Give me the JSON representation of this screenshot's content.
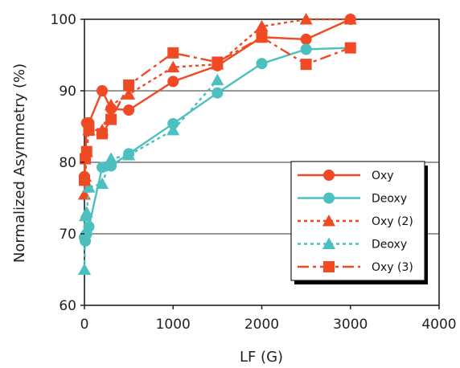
{
  "chart_data": {
    "type": "line",
    "title": "",
    "xlabel": "LF (G)",
    "ylabel": "Normalized Asymmetry (%)",
    "xlim": [
      0,
      4000
    ],
    "ylim": [
      60,
      100
    ],
    "xticks": [
      "0",
      "1000",
      "2000",
      "3000",
      "4000"
    ],
    "yticks": [
      "60",
      "70",
      "80",
      "90",
      "100"
    ],
    "grid": "horizontal",
    "legend_position": "right",
    "colors": {
      "red": "#ef4a23",
      "teal": "#4cbfbf"
    },
    "series": [
      {
        "name": "Oxy",
        "color": "#ef4a23",
        "marker": "circle",
        "dash": "solid",
        "x": [
          0,
          10,
          25,
          50,
          200,
          300,
          500,
          1000,
          1500,
          2000,
          2500,
          3000
        ],
        "y": [
          78,
          80.5,
          85.5,
          85.5,
          90,
          87.5,
          87.3,
          91.3,
          93.5,
          97.5,
          97.2,
          100
        ]
      },
      {
        "name": "Deoxy",
        "color": "#4cbfbf",
        "marker": "circle",
        "dash": "solid",
        "x": [
          0,
          10,
          25,
          50,
          200,
          300,
          500,
          1000,
          1500,
          2000,
          2500,
          3000
        ],
        "y": [
          69.5,
          69,
          70,
          71,
          79.3,
          79.5,
          81.2,
          85.4,
          89.7,
          93.8,
          95.8,
          96
        ]
      },
      {
        "name": "Oxy (2)",
        "color": "#ef4a23",
        "marker": "triangle",
        "dash": "dotted",
        "x": [
          0,
          10,
          25,
          50,
          200,
          300,
          500,
          1000,
          1500,
          2000,
          2500,
          3000
        ],
        "y": [
          75.5,
          78,
          81.5,
          84.5,
          84.5,
          88,
          89.5,
          93.3,
          93.7,
          99,
          100,
          100
        ]
      },
      {
        "name": "Deoxy",
        "color": "#4cbfbf",
        "marker": "triangle",
        "dash": "dotted",
        "x": [
          0,
          10,
          25,
          50,
          200,
          300,
          500,
          1000,
          1500
        ],
        "y": [
          65,
          72.5,
          73,
          76.5,
          77,
          80.5,
          81,
          84.5,
          91.5
        ]
      },
      {
        "name": "Oxy (3)",
        "color": "#ef4a23",
        "marker": "square",
        "dash": "dashed",
        "x": [
          0,
          10,
          25,
          50,
          200,
          300,
          500,
          1000,
          1500,
          2000,
          2500,
          3000
        ],
        "y": [
          77.5,
          80.5,
          81.5,
          84.5,
          84,
          86,
          90.8,
          95.3,
          94,
          97.5,
          93.7,
          96
        ]
      }
    ]
  }
}
